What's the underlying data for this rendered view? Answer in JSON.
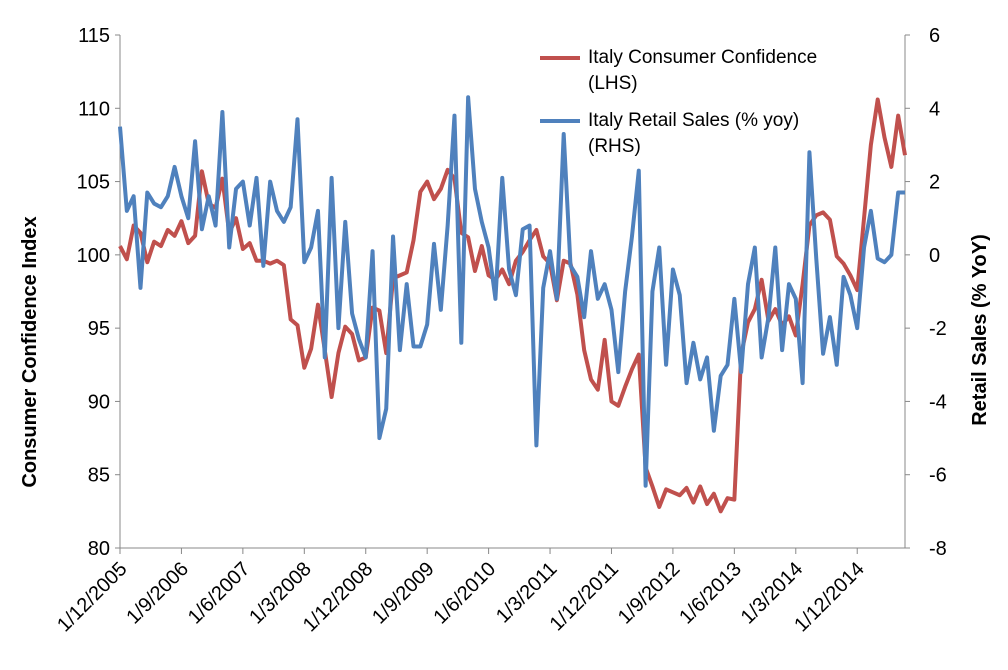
{
  "chart_data": {
    "type": "line",
    "categories": [
      "1/12/2005",
      null,
      null,
      null,
      null,
      null,
      null,
      null,
      null,
      "1/9/2006",
      null,
      null,
      null,
      null,
      null,
      null,
      null,
      null,
      "1/6/2007",
      null,
      null,
      null,
      null,
      null,
      null,
      null,
      null,
      "1/3/2008",
      null,
      null,
      null,
      null,
      null,
      null,
      null,
      null,
      "1/12/2008",
      null,
      null,
      null,
      null,
      null,
      null,
      null,
      null,
      "1/9/2009",
      null,
      null,
      null,
      null,
      null,
      null,
      null,
      null,
      "1/6/2010",
      null,
      null,
      null,
      null,
      null,
      null,
      null,
      null,
      "1/3/2011",
      null,
      null,
      null,
      null,
      null,
      null,
      null,
      null,
      "1/12/2011",
      null,
      null,
      null,
      null,
      null,
      null,
      null,
      null,
      "1/9/2012",
      null,
      null,
      null,
      null,
      null,
      null,
      null,
      null,
      "1/6/2013",
      null,
      null,
      null,
      null,
      null,
      null,
      null,
      null,
      "1/3/2014",
      null,
      null,
      null,
      null,
      null,
      null,
      null,
      null,
      "1/12/2014",
      null,
      null,
      null,
      null,
      null,
      null,
      null
    ],
    "series": [
      {
        "name": "Italy Consumer Confidence (LHS)",
        "color": "#c0504d",
        "axis": "y",
        "values": [
          100.6,
          99.7,
          102,
          101.5,
          99.5,
          100.9,
          100.6,
          101.7,
          101.3,
          102.3,
          100.8,
          101.3,
          105.7,
          103.5,
          103.2,
          105.2,
          101.5,
          102.5,
          100.4,
          100.8,
          99.6,
          99.6,
          99.4,
          99.6,
          99.3,
          95.6,
          95.2,
          92.3,
          93.6,
          96.6,
          93.5,
          90.3,
          93.3,
          95.1,
          94.6,
          92.8,
          93,
          96.4,
          96.2,
          93.3,
          98.4,
          98.6,
          98.8,
          101,
          104.3,
          105,
          103.8,
          104.5,
          105.8,
          105.2,
          101.5,
          101.2,
          98.9,
          100.6,
          98.6,
          98.3,
          99,
          98,
          99.6,
          100.2,
          101,
          101.7,
          99.9,
          99.4,
          96.9,
          99.6,
          99.4,
          97.3,
          93.5,
          91.5,
          90.8,
          94.2,
          90,
          89.7,
          91,
          92.2,
          93.2,
          85.5,
          84.2,
          82.8,
          84,
          83.8,
          83.6,
          84.1,
          83.1,
          84.2,
          83,
          83.7,
          82.5,
          83.4,
          83.3,
          93.2,
          95.4,
          96.3,
          98.3,
          95.5,
          96.3,
          95.2,
          95.8,
          94.5,
          98,
          102,
          102.7,
          102.9,
          102.4,
          99.9,
          99.4,
          98.6,
          97.6,
          102.5,
          107.5,
          110.6,
          108,
          106,
          109.5,
          106.8
        ]
      },
      {
        "name": "Italy Retail Sales (% yoy) (RHS)",
        "color": "#4f81bd",
        "axis": "y2",
        "values": [
          3.5,
          1.2,
          1.6,
          -0.9,
          1.7,
          1.4,
          1.3,
          1.6,
          2.4,
          1.6,
          1,
          3.1,
          0.7,
          1.6,
          0.8,
          3.9,
          0.2,
          1.8,
          2,
          0.8,
          2.1,
          -0.3,
          2,
          1.2,
          0.9,
          1.3,
          3.7,
          -0.2,
          0.2,
          1.2,
          -2.8,
          2.1,
          -2,
          0.9,
          -1.6,
          -2.3,
          -2.8,
          0.1,
          -5,
          -4.2,
          0.5,
          -2.6,
          -0.8,
          -2.5,
          -2.5,
          -1.9,
          0.3,
          -1.5,
          0.8,
          3.8,
          -2.4,
          4.3,
          1.8,
          0.9,
          0.2,
          -1.2,
          2.1,
          -0.4,
          -1.1,
          0.7,
          0.8,
          -5.2,
          -0.9,
          0.1,
          -1.2,
          3.3,
          -0.3,
          -0.6,
          -1.7,
          0.1,
          -1.2,
          -0.8,
          -1.5,
          -3.2,
          -1,
          0.5,
          2.3,
          -6.3,
          -1,
          0.2,
          -3,
          -0.4,
          -1.1,
          -3.5,
          -2.4,
          -3.4,
          -2.8,
          -4.8,
          -3.3,
          -3,
          -1.2,
          -3.2,
          -0.8,
          0.2,
          -2.8,
          -1.7,
          0.2,
          -2.6,
          -0.8,
          -1.2,
          -3.5,
          2.8,
          -0.1,
          -2.7,
          -1.7,
          -3,
          -0.6,
          -1.1,
          -2,
          0.2,
          1.2,
          -0.1,
          -0.2,
          0,
          1.7,
          1.7
        ]
      }
    ],
    "ylabel": "Consumer Confidence Index",
    "y2label": "Retail Sales (% YoY)",
    "ylim": [
      80,
      115
    ],
    "yticks": [
      80,
      85,
      90,
      95,
      100,
      105,
      110,
      115
    ],
    "y2lim": [
      -8,
      6
    ],
    "y2ticks": [
      -8,
      -6,
      -4,
      -2,
      0,
      2,
      4,
      6
    ],
    "grid": false,
    "legend": "top-right"
  }
}
